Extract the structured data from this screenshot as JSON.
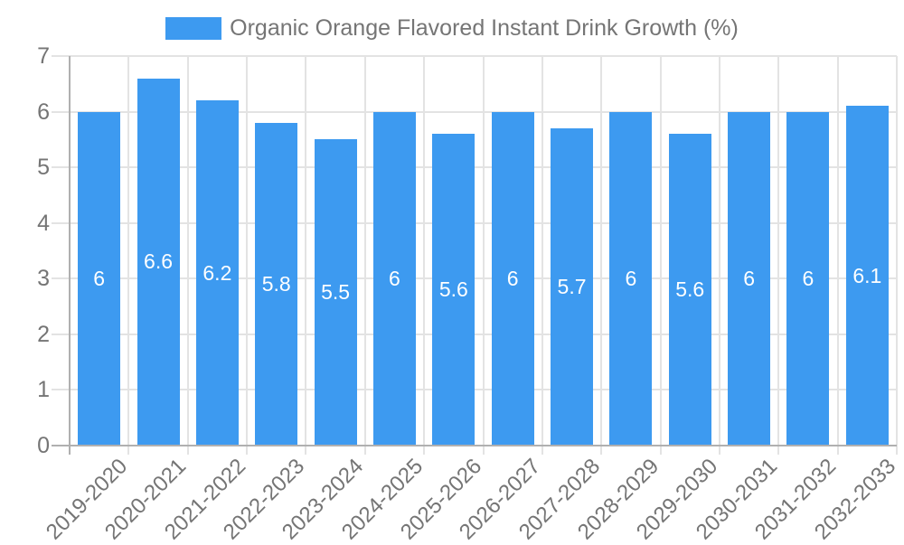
{
  "chart_data": {
    "type": "bar",
    "title": "Organic Orange Flavored Instant Drink Growth (%)",
    "categories": [
      "2019-2020",
      "2020-2021",
      "2021-2022",
      "2022-2023",
      "2023-2024",
      "2024-2025",
      "2025-2026",
      "2026-2027",
      "2027-2028",
      "2028-2029",
      "2029-2030",
      "2030-2031",
      "2031-2032",
      "2032-2033"
    ],
    "series": [
      {
        "name": "Organic Orange Flavored Instant Drink Growth (%)",
        "values": [
          6,
          6.6,
          6.2,
          5.8,
          5.5,
          6,
          5.6,
          6,
          5.7,
          6,
          5.6,
          6,
          6,
          6.1
        ]
      }
    ],
    "value_labels": [
      "6",
      "6.6",
      "6.2",
      "5.8",
      "5.5",
      "6",
      "5.6",
      "6",
      "5.7",
      "6",
      "5.6",
      "6",
      "6",
      "6.1"
    ],
    "xlabel": "",
    "ylabel": "",
    "ylim": [
      0,
      7
    ],
    "yticks": [
      "0",
      "1",
      "2",
      "3",
      "4",
      "5",
      "6",
      "7"
    ],
    "grid": true,
    "legend_position": "top",
    "colors": {
      "bar": "#3d9af0",
      "value_label": "#ffffff",
      "axis_text": "#757575",
      "legend_text": "#757575",
      "gridline": "#e3e3e3",
      "axis_line": "#b0b0b0"
    }
  }
}
